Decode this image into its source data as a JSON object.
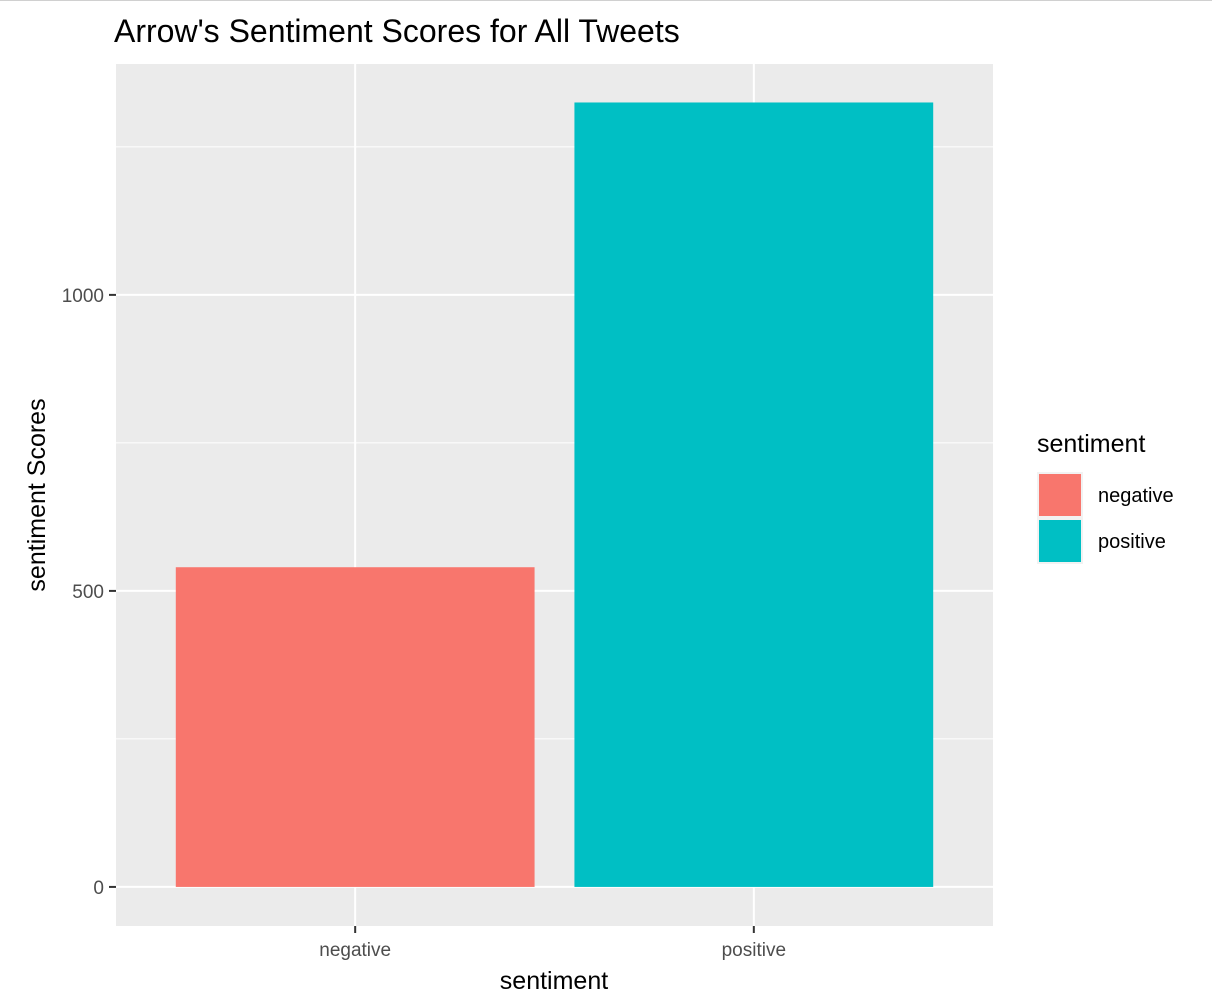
{
  "chart_data": {
    "type": "bar",
    "title": "Arrow's Sentiment Scores for All Tweets",
    "xlabel": "sentiment",
    "ylabel": "sentiment Scores",
    "categories": [
      "negative",
      "positive"
    ],
    "values": [
      540,
      1325
    ],
    "colors": [
      "#F8766D",
      "#00BFC4"
    ],
    "ylim": [
      -66,
      1390
    ],
    "yticks": [
      0,
      500,
      1000
    ],
    "ygrid_minor": [
      250,
      750,
      1250
    ],
    "grid": true,
    "background": "#EBEBEB",
    "legend": {
      "title": "sentiment",
      "position": "right",
      "items": [
        {
          "label": "negative",
          "color": "#F8766D"
        },
        {
          "label": "positive",
          "color": "#00BFC4"
        }
      ]
    }
  }
}
